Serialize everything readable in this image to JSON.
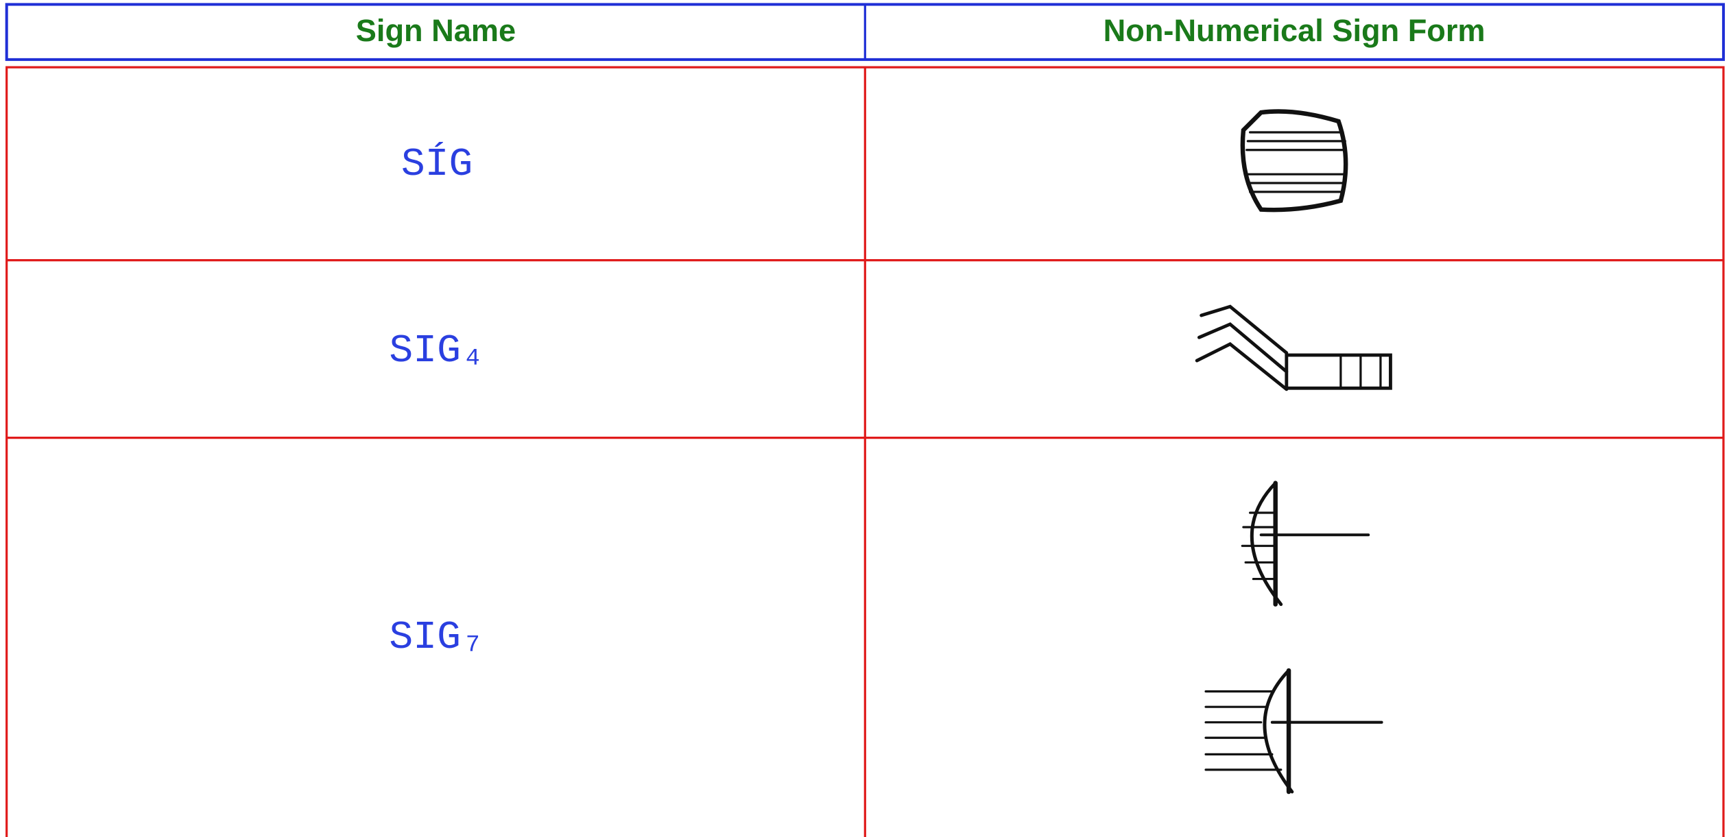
{
  "header": {
    "columns": [
      "Sign Name",
      "Non-Numerical Sign Form"
    ]
  },
  "table": {
    "rows": [
      {
        "name": "SÍG"
      },
      {
        "name": "SIG₄"
      },
      {
        "name": "SIG₇"
      }
    ]
  }
}
